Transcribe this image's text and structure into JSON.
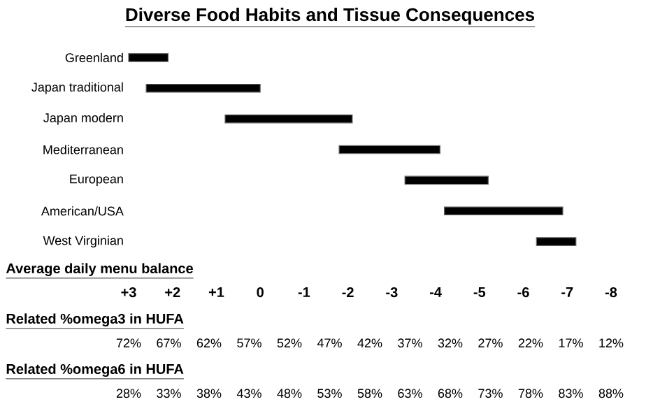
{
  "chart_data": {
    "type": "bar",
    "orientation": "horizontal",
    "title": "Diverse Food Habits and Tissue Consequences",
    "xlabel": "Average daily menu balance",
    "categories": [
      "Greenland",
      "Japan traditional",
      "Japan modern",
      "Mediterranean",
      "European",
      "American/USA",
      "West Virginian"
    ],
    "base": [
      3.0,
      2.6,
      0.8,
      -1.8,
      -3.3,
      -4.2,
      -6.3
    ],
    "values": [
      -0.9,
      -2.6,
      -2.9,
      -2.3,
      -1.9,
      -2.7,
      -0.9
    ],
    "color": "#000000",
    "xlim": [
      3,
      -8
    ],
    "xticks": [
      {
        "value": 3,
        "label": "+3"
      },
      {
        "value": 2,
        "label": "+2"
      },
      {
        "value": 1,
        "label": "+1"
      },
      0,
      -1,
      -2,
      -3,
      -4,
      -5,
      -6,
      -7,
      -8
    ],
    "annotations": [
      "Related %omega3 in HUFA",
      "72%",
      "67%",
      "62%",
      "57%",
      "52%",
      "47%",
      "42%",
      "37%",
      "32%",
      "27%",
      "22%",
      "17%",
      "12%",
      "Related %omega6 in HUFA",
      "28%",
      "33%",
      "38%",
      "43%",
      "48%",
      "53%",
      "58%",
      "63%",
      "68%",
      "73%",
      "78%",
      "83%",
      "88%"
    ],
    "grid": false
  }
}
